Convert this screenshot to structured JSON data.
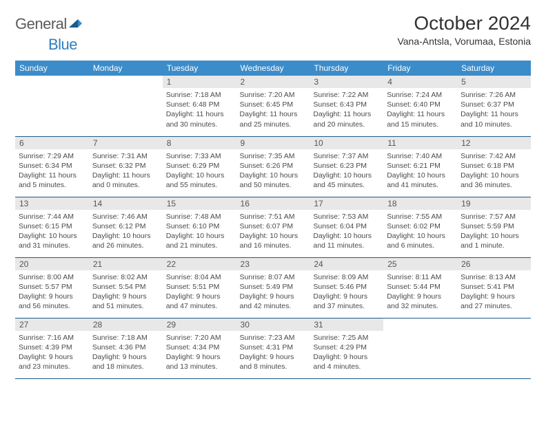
{
  "logo": {
    "text1": "General",
    "text2": "Blue"
  },
  "title": "October 2024",
  "location": "Vana-Antsla, Vorumaa, Estonia",
  "colors": {
    "header_bg": "#3b8cc9",
    "header_text": "#ffffff",
    "daynum_bg": "#e8e8e8",
    "row_divider": "#1b5a8a",
    "body_text": "#4a4a4a",
    "logo_gray": "#5a5a5a",
    "logo_blue": "#2e7fbf"
  },
  "typography": {
    "title_fontsize": 28,
    "location_fontsize": 14,
    "header_fontsize": 12,
    "daynum_fontsize": 12,
    "body_fontsize": 10.5
  },
  "week_headers": [
    "Sunday",
    "Monday",
    "Tuesday",
    "Wednesday",
    "Thursday",
    "Friday",
    "Saturday"
  ],
  "weeks": [
    [
      null,
      null,
      {
        "n": "1",
        "sunrise": "Sunrise: 7:18 AM",
        "sunset": "Sunset: 6:48 PM",
        "day": "Daylight: 11 hours and 30 minutes."
      },
      {
        "n": "2",
        "sunrise": "Sunrise: 7:20 AM",
        "sunset": "Sunset: 6:45 PM",
        "day": "Daylight: 11 hours and 25 minutes."
      },
      {
        "n": "3",
        "sunrise": "Sunrise: 7:22 AM",
        "sunset": "Sunset: 6:43 PM",
        "day": "Daylight: 11 hours and 20 minutes."
      },
      {
        "n": "4",
        "sunrise": "Sunrise: 7:24 AM",
        "sunset": "Sunset: 6:40 PM",
        "day": "Daylight: 11 hours and 15 minutes."
      },
      {
        "n": "5",
        "sunrise": "Sunrise: 7:26 AM",
        "sunset": "Sunset: 6:37 PM",
        "day": "Daylight: 11 hours and 10 minutes."
      }
    ],
    [
      {
        "n": "6",
        "sunrise": "Sunrise: 7:29 AM",
        "sunset": "Sunset: 6:34 PM",
        "day": "Daylight: 11 hours and 5 minutes."
      },
      {
        "n": "7",
        "sunrise": "Sunrise: 7:31 AM",
        "sunset": "Sunset: 6:32 PM",
        "day": "Daylight: 11 hours and 0 minutes."
      },
      {
        "n": "8",
        "sunrise": "Sunrise: 7:33 AM",
        "sunset": "Sunset: 6:29 PM",
        "day": "Daylight: 10 hours and 55 minutes."
      },
      {
        "n": "9",
        "sunrise": "Sunrise: 7:35 AM",
        "sunset": "Sunset: 6:26 PM",
        "day": "Daylight: 10 hours and 50 minutes."
      },
      {
        "n": "10",
        "sunrise": "Sunrise: 7:37 AM",
        "sunset": "Sunset: 6:23 PM",
        "day": "Daylight: 10 hours and 45 minutes."
      },
      {
        "n": "11",
        "sunrise": "Sunrise: 7:40 AM",
        "sunset": "Sunset: 6:21 PM",
        "day": "Daylight: 10 hours and 41 minutes."
      },
      {
        "n": "12",
        "sunrise": "Sunrise: 7:42 AM",
        "sunset": "Sunset: 6:18 PM",
        "day": "Daylight: 10 hours and 36 minutes."
      }
    ],
    [
      {
        "n": "13",
        "sunrise": "Sunrise: 7:44 AM",
        "sunset": "Sunset: 6:15 PM",
        "day": "Daylight: 10 hours and 31 minutes."
      },
      {
        "n": "14",
        "sunrise": "Sunrise: 7:46 AM",
        "sunset": "Sunset: 6:12 PM",
        "day": "Daylight: 10 hours and 26 minutes."
      },
      {
        "n": "15",
        "sunrise": "Sunrise: 7:48 AM",
        "sunset": "Sunset: 6:10 PM",
        "day": "Daylight: 10 hours and 21 minutes."
      },
      {
        "n": "16",
        "sunrise": "Sunrise: 7:51 AM",
        "sunset": "Sunset: 6:07 PM",
        "day": "Daylight: 10 hours and 16 minutes."
      },
      {
        "n": "17",
        "sunrise": "Sunrise: 7:53 AM",
        "sunset": "Sunset: 6:04 PM",
        "day": "Daylight: 10 hours and 11 minutes."
      },
      {
        "n": "18",
        "sunrise": "Sunrise: 7:55 AM",
        "sunset": "Sunset: 6:02 PM",
        "day": "Daylight: 10 hours and 6 minutes."
      },
      {
        "n": "19",
        "sunrise": "Sunrise: 7:57 AM",
        "sunset": "Sunset: 5:59 PM",
        "day": "Daylight: 10 hours and 1 minute."
      }
    ],
    [
      {
        "n": "20",
        "sunrise": "Sunrise: 8:00 AM",
        "sunset": "Sunset: 5:57 PM",
        "day": "Daylight: 9 hours and 56 minutes."
      },
      {
        "n": "21",
        "sunrise": "Sunrise: 8:02 AM",
        "sunset": "Sunset: 5:54 PM",
        "day": "Daylight: 9 hours and 51 minutes."
      },
      {
        "n": "22",
        "sunrise": "Sunrise: 8:04 AM",
        "sunset": "Sunset: 5:51 PM",
        "day": "Daylight: 9 hours and 47 minutes."
      },
      {
        "n": "23",
        "sunrise": "Sunrise: 8:07 AM",
        "sunset": "Sunset: 5:49 PM",
        "day": "Daylight: 9 hours and 42 minutes."
      },
      {
        "n": "24",
        "sunrise": "Sunrise: 8:09 AM",
        "sunset": "Sunset: 5:46 PM",
        "day": "Daylight: 9 hours and 37 minutes."
      },
      {
        "n": "25",
        "sunrise": "Sunrise: 8:11 AM",
        "sunset": "Sunset: 5:44 PM",
        "day": "Daylight: 9 hours and 32 minutes."
      },
      {
        "n": "26",
        "sunrise": "Sunrise: 8:13 AM",
        "sunset": "Sunset: 5:41 PM",
        "day": "Daylight: 9 hours and 27 minutes."
      }
    ],
    [
      {
        "n": "27",
        "sunrise": "Sunrise: 7:16 AM",
        "sunset": "Sunset: 4:39 PM",
        "day": "Daylight: 9 hours and 23 minutes."
      },
      {
        "n": "28",
        "sunrise": "Sunrise: 7:18 AM",
        "sunset": "Sunset: 4:36 PM",
        "day": "Daylight: 9 hours and 18 minutes."
      },
      {
        "n": "29",
        "sunrise": "Sunrise: 7:20 AM",
        "sunset": "Sunset: 4:34 PM",
        "day": "Daylight: 9 hours and 13 minutes."
      },
      {
        "n": "30",
        "sunrise": "Sunrise: 7:23 AM",
        "sunset": "Sunset: 4:31 PM",
        "day": "Daylight: 9 hours and 8 minutes."
      },
      {
        "n": "31",
        "sunrise": "Sunrise: 7:25 AM",
        "sunset": "Sunset: 4:29 PM",
        "day": "Daylight: 9 hours and 4 minutes."
      },
      null,
      null
    ]
  ]
}
